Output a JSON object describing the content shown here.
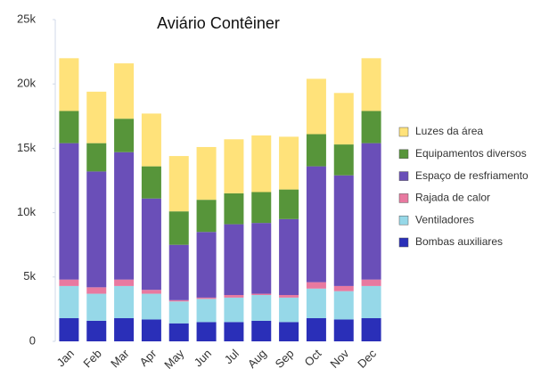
{
  "chart_data": {
    "type": "stacked_bar",
    "title": "Aviário Contêiner",
    "categories": [
      "Jan",
      "Feb",
      "Mar",
      "Apr",
      "May",
      "Jun",
      "Jul",
      "Aug",
      "Sep",
      "Oct",
      "Nov",
      "Dec"
    ],
    "series": [
      {
        "name": "Bombas auxiliares",
        "color": "#2a2fb8",
        "values": [
          1800,
          1600,
          1800,
          1700,
          1400,
          1500,
          1500,
          1600,
          1500,
          1800,
          1700,
          1800
        ]
      },
      {
        "name": "Ventiladores",
        "color": "#96d8e8",
        "values": [
          2500,
          2100,
          2500,
          2000,
          1700,
          1800,
          1900,
          2000,
          1900,
          2300,
          2200,
          2500
        ]
      },
      {
        "name": "Rajada de calor",
        "color": "#e879a0",
        "values": [
          500,
          500,
          500,
          300,
          100,
          100,
          200,
          100,
          200,
          500,
          400,
          500
        ]
      },
      {
        "name": "Espaço de resfriamento",
        "color": "#6a4fb8",
        "values": [
          10600,
          9000,
          9900,
          7100,
          4300,
          5100,
          5500,
          5500,
          5900,
          9000,
          8600,
          10600
        ]
      },
      {
        "name": "Equipamentos diversos",
        "color": "#57953a",
        "values": [
          2500,
          2200,
          2600,
          2500,
          2600,
          2500,
          2400,
          2400,
          2300,
          2500,
          2400,
          2500
        ]
      },
      {
        "name": "Luzes da área",
        "color": "#ffe27a",
        "values": [
          4100,
          4000,
          4300,
          4100,
          4300,
          4100,
          4200,
          4400,
          4100,
          4300,
          4000,
          4100
        ]
      }
    ],
    "ylim": [
      0,
      25000
    ],
    "yticks": [
      0,
      {
        "value": 5000,
        "label": "5k"
      },
      {
        "value": 10000,
        "label": "10k"
      },
      {
        "value": 15000,
        "label": "15k"
      },
      {
        "value": 20000,
        "label": "20k"
      },
      {
        "value": 25000,
        "label": "25k"
      }
    ]
  }
}
